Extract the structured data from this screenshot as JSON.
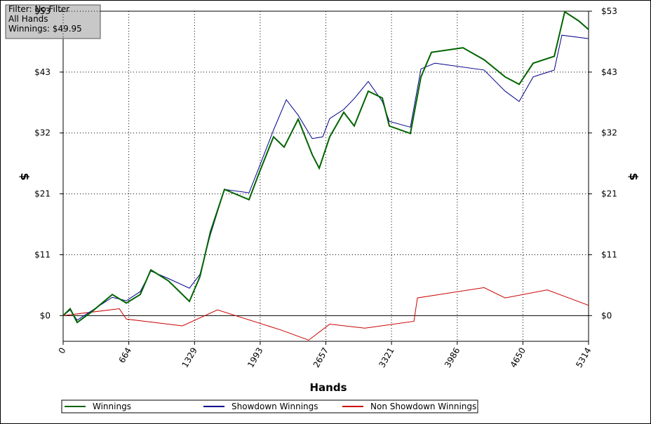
{
  "info_box": {
    "lines": [
      "Filter: No Filter",
      "All Hands",
      "Winnings: $49.95"
    ]
  },
  "chart_data": {
    "type": "line",
    "xlabel": "Hands",
    "ylabel": "$",
    "y2label": "$",
    "xlim": [
      0,
      5314
    ],
    "xticks": [
      0,
      664,
      1329,
      1993,
      2657,
      3321,
      3986,
      4650,
      5314
    ],
    "ylim": [
      -4.5,
      53.3
    ],
    "yticks": [
      {
        "value": 0,
        "label": "$0"
      },
      {
        "value": 10.66,
        "label": "$11"
      },
      {
        "value": 21.32,
        "label": "$21"
      },
      {
        "value": 31.98,
        "label": "$32"
      },
      {
        "value": 42.64,
        "label": "$43"
      },
      {
        "value": 53.3,
        "label": "$53"
      }
    ],
    "grid": true,
    "series": [
      {
        "name": "Winnings",
        "color": "#006400",
        "x": [
          0,
          71,
          142,
          284,
          497,
          639,
          780,
          887,
          1064,
          1277,
          1383,
          1490,
          1632,
          1880,
          1987,
          2128,
          2235,
          2377,
          2519,
          2590,
          2696,
          2838,
          2944,
          3086,
          3228,
          3299,
          3512,
          3619,
          3725,
          4044,
          4257,
          4470,
          4612,
          4754,
          4967,
          5073,
          5215,
          5314
        ],
        "values": [
          0,
          1.2,
          -1.2,
          0.6,
          3.7,
          2.2,
          3.7,
          8,
          6.1,
          2.5,
          6.8,
          14.7,
          22.1,
          20.3,
          25.2,
          31.3,
          29.5,
          34.4,
          28.2,
          25.8,
          31.3,
          35.6,
          33.2,
          39.3,
          38.1,
          33.2,
          31.9,
          41.8,
          46.1,
          46.9,
          44.8,
          41.8,
          40.5,
          44.2,
          45.4,
          53.2,
          51.6,
          50.1
        ]
      },
      {
        "name": "Showdown Winnings",
        "color": "#00008b",
        "x": [
          0,
          71,
          142,
          284,
          497,
          639,
          780,
          887,
          1064,
          1277,
          1383,
          1490,
          1632,
          1880,
          1987,
          2128,
          2257,
          2377,
          2519,
          2625,
          2696,
          2838,
          2944,
          3086,
          3228,
          3299,
          3512,
          3619,
          3760,
          4257,
          4470,
          4612,
          4754,
          4967,
          5044,
          5314
        ],
        "values": [
          0,
          1.0,
          -0.8,
          0.8,
          3.2,
          2.6,
          4.2,
          7.8,
          6.5,
          4.8,
          7.2,
          14.2,
          22.1,
          21.5,
          26.2,
          32.5,
          37.8,
          35.1,
          31.0,
          31.3,
          34.5,
          36.1,
          38.0,
          41.0,
          37.5,
          34.0,
          33.0,
          43.2,
          44.2,
          43.0,
          39.3,
          37.5,
          41.8,
          43.0,
          49.1,
          48.5
        ]
      },
      {
        "name": "Non Showdown Winnings",
        "color": "#cc0000",
        "x": [
          0,
          568,
          639,
          1206,
          1561,
          2199,
          2483,
          2696,
          3051,
          3548,
          3583,
          4257,
          4470,
          4896,
          5314
        ],
        "values": [
          0,
          1.2,
          -0.6,
          -1.8,
          1,
          -2.5,
          -4.3,
          -1.5,
          -2.2,
          -1,
          3.1,
          4.9,
          3.1,
          4.5,
          1.8
        ]
      }
    ]
  }
}
